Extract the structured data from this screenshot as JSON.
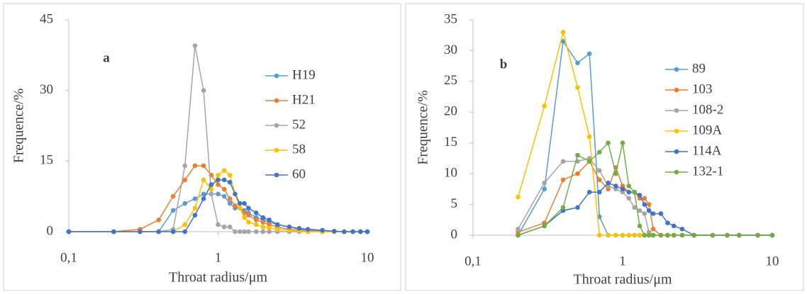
{
  "chart_data": [
    {
      "type": "line",
      "label": "a",
      "xlabel": "Throat radius/μm",
      "ylabel": "Frequence/%",
      "log_x": true,
      "grid": false,
      "xlim": [
        0.1,
        10
      ],
      "xticks": [
        {
          "value": 0.1,
          "label": "0,1"
        },
        1,
        10
      ],
      "ylim": [
        0,
        45
      ],
      "yticks": [
        0,
        15,
        30,
        45
      ],
      "x": [
        0.1,
        0.2,
        0.3,
        0.4,
        0.5,
        0.6,
        0.7,
        0.8,
        0.9,
        1,
        1.1,
        1.2,
        1.3,
        1.4,
        1.5,
        1.6,
        1.8,
        2,
        2.2,
        2.5,
        3,
        3.5,
        4,
        5,
        6,
        7,
        8,
        9,
        10
      ],
      "series": [
        {
          "name": "H19",
          "color": "#5b9bd5",
          "values": [
            0,
            0,
            0,
            0,
            4.5,
            6,
            7,
            8,
            8,
            8,
            7.5,
            6,
            5,
            5,
            4.5,
            4,
            3,
            2.5,
            2,
            1.5,
            1,
            0.5,
            0.3,
            0.2,
            0.1,
            0,
            0,
            0,
            0
          ]
        },
        {
          "name": "H21",
          "color": "#ed7d31",
          "values": [
            0,
            0,
            0.5,
            2.5,
            7.5,
            11,
            14,
            14,
            12,
            10,
            9,
            7,
            5.5,
            5,
            4,
            3.5,
            2.5,
            2,
            1.5,
            1,
            0.5,
            0.3,
            0.2,
            0,
            0,
            0,
            0,
            0,
            0
          ]
        },
        {
          "name": "52",
          "color": "#a5a5a5",
          "values": [
            0,
            0,
            0,
            0,
            0.5,
            14,
            39.5,
            30,
            8,
            1.5,
            1,
            1,
            0,
            0,
            0,
            0,
            0,
            0,
            0,
            0,
            0,
            0,
            0,
            0,
            0,
            0,
            0,
            0,
            0
          ]
        },
        {
          "name": "58",
          "color": "#ffc000",
          "values": [
            0,
            0,
            0,
            0,
            0,
            1.5,
            5,
            11,
            9,
            12,
            13,
            12,
            8,
            5,
            3,
            2,
            1.5,
            1,
            0.8,
            0.5,
            0.3,
            0.2,
            0,
            0,
            0,
            0,
            0,
            0,
            0
          ]
        },
        {
          "name": "60",
          "color": "#4472c4",
          "values": [
            0,
            0,
            0,
            0,
            0,
            0,
            3.5,
            7,
            10,
            11,
            11,
            10.5,
            8,
            6,
            6,
            5,
            4,
            3,
            2.5,
            1.5,
            1,
            0.7,
            0.5,
            0.3,
            0.1,
            0,
            0,
            0,
            0
          ]
        }
      ]
    },
    {
      "type": "line",
      "label": "b",
      "xlabel": "Throat radius/μm",
      "ylabel": "Frequence/%",
      "log_x": true,
      "grid": false,
      "xlim": [
        0.1,
        10
      ],
      "xticks": [
        {
          "value": 0.1,
          "label": "0,1"
        },
        1,
        10
      ],
      "ylim": [
        0,
        35
      ],
      "yticks": [
        0,
        5,
        10,
        15,
        20,
        25,
        30,
        35
      ],
      "x": [
        0.2,
        0.3,
        0.4,
        0.5,
        0.6,
        0.7,
        0.8,
        0.9,
        1,
        1.1,
        1.2,
        1.3,
        1.4,
        1.5,
        1.6,
        1.8,
        2,
        2.2,
        2.5,
        3,
        4,
        5,
        6,
        8,
        10
      ],
      "series": [
        {
          "name": "89",
          "color": "#5b9bd5",
          "values": [
            0,
            7.5,
            31.5,
            28,
            29.5,
            3,
            0,
            0,
            0,
            0,
            0,
            0,
            0,
            0,
            0,
            0,
            0,
            0,
            0,
            0,
            0,
            0,
            0,
            0,
            0
          ]
        },
        {
          "name": "103",
          "color": "#ed7d31",
          "values": [
            0.5,
            2,
            9,
            10,
            12,
            9,
            7.5,
            11,
            8,
            7,
            7,
            6,
            6,
            5,
            1,
            0,
            0,
            0,
            0,
            0,
            0,
            0,
            0,
            0,
            0
          ]
        },
        {
          "name": "108-2",
          "color": "#a5a5a5",
          "values": [
            1,
            8.5,
            12,
            12,
            12.5,
            10.5,
            8,
            7.5,
            7,
            6,
            4.5,
            4,
            3.5,
            0.5,
            0,
            0,
            0,
            0,
            0,
            0,
            0,
            0,
            0,
            0,
            0
          ]
        },
        {
          "name": "109A",
          "color": "#ffc000",
          "values": [
            6.2,
            21,
            33,
            24,
            16,
            0,
            0,
            0,
            0,
            0,
            0,
            0,
            0,
            0,
            0,
            0,
            0,
            0,
            0,
            0,
            0,
            0,
            0,
            0,
            0
          ]
        },
        {
          "name": "114A",
          "color": "#4472c4",
          "values": [
            0,
            1.5,
            4,
            4.5,
            7,
            7,
            8.5,
            8,
            7.5,
            7,
            7,
            6.5,
            5,
            4,
            3.5,
            3.5,
            2,
            1.5,
            1,
            0,
            0,
            0,
            0,
            0,
            0
          ]
        },
        {
          "name": "132-1",
          "color": "#70ad47",
          "values": [
            0,
            1.5,
            4.5,
            13,
            12,
            13.5,
            15,
            10,
            15,
            8,
            7,
            1.5,
            0,
            0,
            0,
            0,
            0,
            0,
            0,
            0,
            0,
            0,
            0,
            0,
            0
          ]
        }
      ]
    }
  ]
}
